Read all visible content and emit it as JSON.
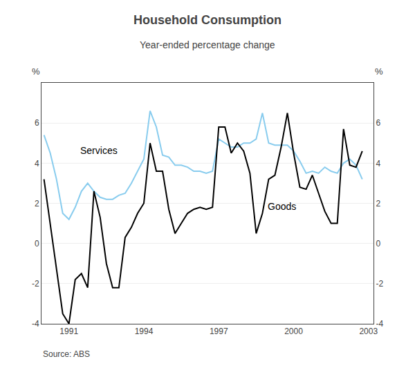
{
  "chart_data": {
    "type": "line",
    "title": "Household Consumption",
    "subtitle": "Year-ended percentage change",
    "ylabel": "%",
    "y2label": "%",
    "x": [
      1990.0,
      1990.25,
      1990.5,
      1990.75,
      1991.0,
      1991.25,
      1991.5,
      1991.75,
      1992.0,
      1992.25,
      1992.5,
      1992.75,
      1993.0,
      1993.25,
      1993.5,
      1993.75,
      1994.0,
      1994.25,
      1994.5,
      1994.75,
      1995.0,
      1995.25,
      1995.5,
      1995.75,
      1996.0,
      1996.25,
      1996.5,
      1996.75,
      1997.0,
      1997.25,
      1997.5,
      1997.75,
      1998.0,
      1998.25,
      1998.5,
      1998.75,
      1999.0,
      1999.25,
      1999.5,
      1999.75,
      2000.0,
      2000.25,
      2000.5,
      2000.75,
      2001.0,
      2001.25,
      2001.5,
      2001.75,
      2002.0,
      2002.25,
      2002.5,
      2002.75
    ],
    "series": [
      {
        "name": "Services",
        "color": "#88ccee",
        "values": [
          5.4,
          4.5,
          3.2,
          1.5,
          1.2,
          1.8,
          2.6,
          3.0,
          2.6,
          2.3,
          2.2,
          2.2,
          2.4,
          2.5,
          3.0,
          3.6,
          4.2,
          6.6,
          5.8,
          4.4,
          4.3,
          3.9,
          3.9,
          3.8,
          3.6,
          3.6,
          3.5,
          3.6,
          5.2,
          5.0,
          4.8,
          4.8,
          5.0,
          5.0,
          5.2,
          6.5,
          5.0,
          4.9,
          4.9,
          4.9,
          4.6,
          4.1,
          3.5,
          3.6,
          3.5,
          3.8,
          3.6,
          3.5,
          4.0,
          4.2,
          3.9,
          3.2
        ]
      },
      {
        "name": "Goods",
        "color": "#000000",
        "values": [
          3.2,
          1.0,
          -1.2,
          -3.5,
          -4.0,
          -1.8,
          -1.5,
          -2.2,
          2.6,
          1.3,
          -1.0,
          -2.2,
          -2.2,
          0.3,
          0.8,
          1.5,
          2.0,
          5.0,
          3.6,
          3.6,
          1.7,
          0.5,
          1.0,
          1.5,
          1.7,
          1.8,
          1.7,
          1.8,
          5.8,
          5.8,
          4.5,
          5.0,
          4.6,
          3.5,
          0.5,
          1.5,
          3.2,
          3.4,
          4.8,
          6.5,
          4.5,
          2.8,
          2.7,
          3.4,
          2.5,
          1.6,
          1.0,
          1.0,
          5.7,
          3.9,
          3.8,
          4.6
        ]
      }
    ],
    "annotations": [
      {
        "text": "Services",
        "x": 1991.4,
        "y": 4.3
      },
      {
        "text": "Goods",
        "x": 1998.9,
        "y": 1.5
      }
    ],
    "source": "Source: ABS",
    "xlim": [
      1989.9,
      2003.2
    ],
    "xticks": [
      1991,
      1994,
      1997,
      2000,
      2003
    ],
    "ylim": [
      -4,
      8
    ],
    "yticks": [
      -4,
      -2,
      0,
      2,
      4,
      6
    ],
    "y2lim": [
      -4,
      8
    ],
    "y2ticks": [
      -4,
      -2,
      0,
      2,
      4,
      6
    ],
    "grid": "y"
  }
}
